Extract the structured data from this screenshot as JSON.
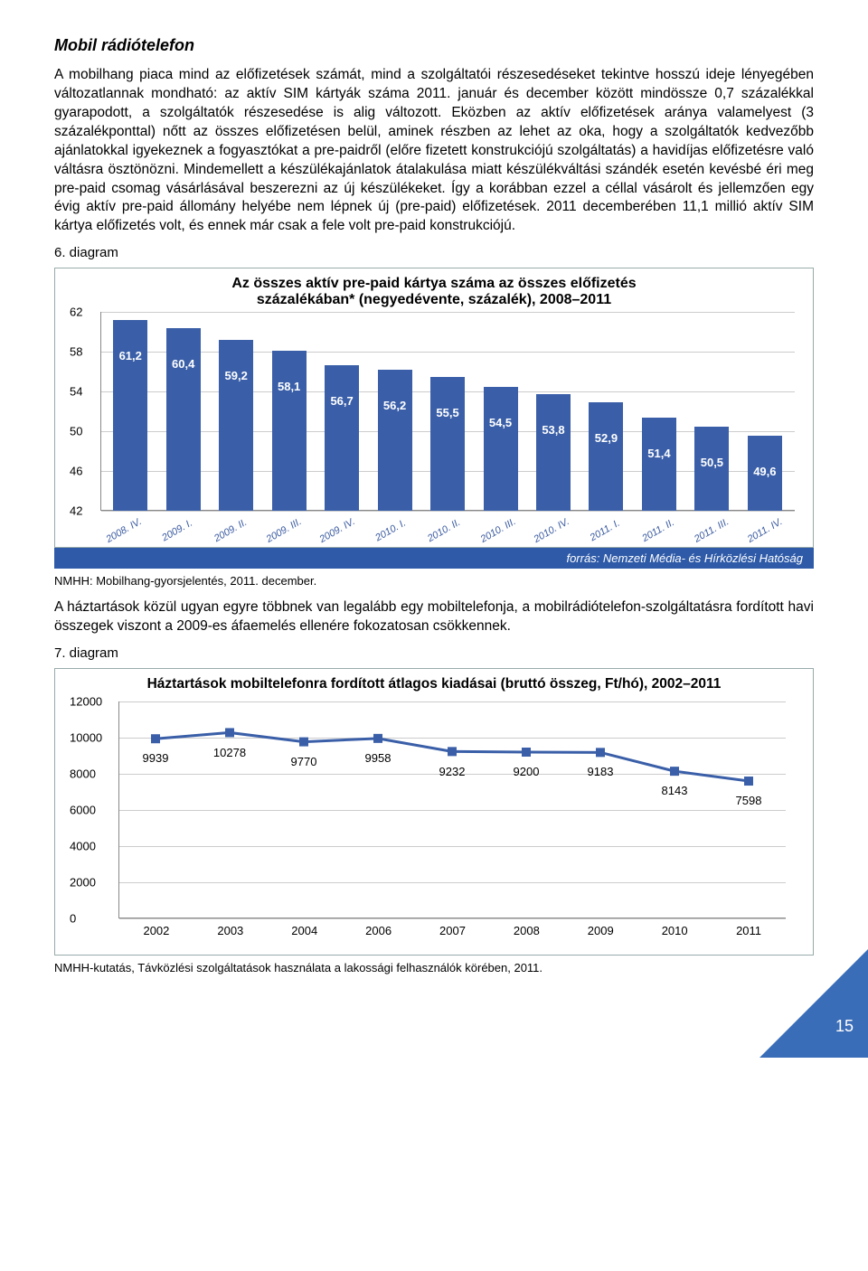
{
  "heading": "Mobil rádiótelefon",
  "paragraph": "A mobilhang piaca mind az előfizetések számát, mind a szolgáltatói részesedéseket tekintve hosszú ideje lényegében változatlannak mondható: az aktív SIM kártyák száma 2011. január és december között mindössze 0,7 százalékkal gyarapodott, a szolgáltatók részesedése is alig változott. Eközben az aktív előfizetések aránya valamelyest (3 százalékponttal) nőtt az összes előfizetésen belül, aminek részben az lehet az oka, hogy a szolgáltatók kedvezőbb ajánlatokkal igyekeznek a fogyasztókat a pre-paidről (előre fizetett konstrukciójú szolgáltatás) a havidíjas előfizetésre való váltásra ösztönözni. Mindemellett a készülékajánlatok átalakulása miatt készülékváltási szándék esetén kevésbé éri meg pre-paid csomag vásárlásával beszerezni az új készülékeket. Így a korábban ezzel a céllal vásárolt és jellemzően egy évig aktív pre-paid állomány helyébe nem lépnek új (pre-paid) előfizetések. 2011 decemberében 11,1 millió aktív SIM kártya előfizetés volt, és ennek már csak a fele volt pre-paid konstrukciójú.",
  "diagram6_label": "6. diagram",
  "chart1": {
    "title_line1": "Az összes aktív pre-paid kártya száma az összes előfizetés",
    "title_line2": "százalékában* (negyedévente, százalék), 2008–2011",
    "type": "bar",
    "ymin": 42,
    "ymax": 62,
    "ystep": 4,
    "yticks": [
      42,
      46,
      50,
      54,
      58,
      62
    ],
    "categories": [
      "2008. IV.",
      "2009. I.",
      "2009. II.",
      "2009. III.",
      "2009. IV.",
      "2010. I.",
      "2010. II.",
      "2010. III.",
      "2010. IV.",
      "2011. I.",
      "2011. II.",
      "2011. III.",
      "2011. IV."
    ],
    "values": [
      61.2,
      60.4,
      59.2,
      58.1,
      56.7,
      56.2,
      55.5,
      54.5,
      53.8,
      52.9,
      51.4,
      50.5,
      49.6
    ],
    "value_labels": [
      "61,2",
      "60,4",
      "59,2",
      "58,1",
      "56,7",
      "56,2",
      "55,5",
      "54,5",
      "53,8",
      "52,9",
      "51,4",
      "50,5",
      "49,6"
    ],
    "bar_color": "#3a5fa8",
    "grid_color": "#cccccc",
    "axis_color": "#888888",
    "background": "#ffffff"
  },
  "source_text": "forrás: Nemzeti Média- és Hírközlési Hatóság",
  "caption1": "NMHH: Mobilhang-gyorsjelentés, 2011. december.",
  "paragraph2": "A háztartások közül ugyan egyre többnek van legalább egy mobiltelefonja, a mobilrádiótelefon-szolgáltatásra fordított havi összegek viszont a 2009-es áfaemelés ellenére fokozatosan csökkennek.",
  "diagram7_label": "7. diagram",
  "chart2": {
    "title": "Háztartások mobiltelefonra fordított átlagos kiadásai (bruttó összeg, Ft/hó), 2002–2011",
    "type": "line",
    "ymin": 0,
    "ymax": 12000,
    "ystep": 2000,
    "yticks": [
      0,
      2000,
      4000,
      6000,
      8000,
      10000,
      12000
    ],
    "categories": [
      "2002",
      "2003",
      "2004",
      "2006",
      "2007",
      "2008",
      "2009",
      "2010",
      "2011"
    ],
    "values": [
      9939,
      10278,
      9770,
      9958,
      9232,
      9200,
      9183,
      8143,
      7598
    ],
    "value_labels": [
      "9939",
      "10278",
      "9770",
      "9958",
      "9232",
      "9200",
      "9183",
      "8143",
      "7598"
    ],
    "line_color": "#3a5fa8",
    "marker_color": "#3a5fa8",
    "grid_color": "#cccccc",
    "axis_color": "#888888",
    "background": "#ffffff"
  },
  "caption2": "NMHH-kutatás, Távközlési szolgáltatások használata a lakossági felhasználók körében, 2011.",
  "page_number": "15"
}
